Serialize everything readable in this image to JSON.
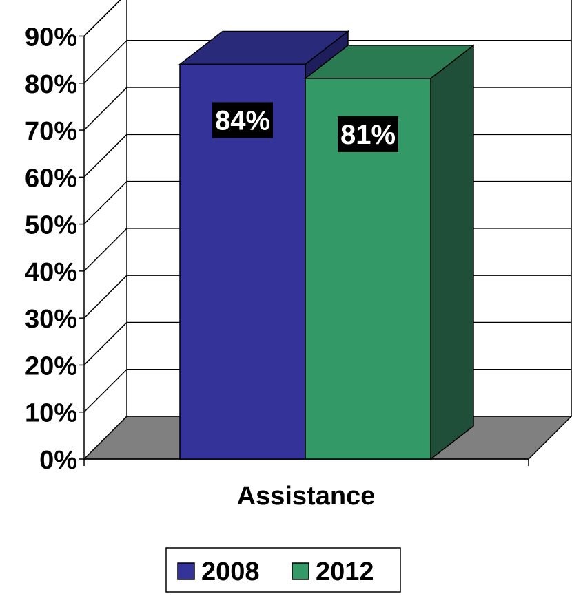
{
  "chart_data": {
    "type": "bar",
    "categories": [
      "Assistance"
    ],
    "series": [
      {
        "name": "2008",
        "values": [
          84
        ],
        "color": "#333399",
        "top_color": "#2a2a7a",
        "side_color": "#1e1e5c",
        "label_bg": "#000000"
      },
      {
        "name": "2012",
        "values": [
          81
        ],
        "color": "#339966",
        "top_color": "#2a7a52",
        "side_color": "#1f4f38",
        "label_bg": "#000000"
      }
    ],
    "data_labels": [
      "84%",
      "81%"
    ],
    "y_ticks": [
      "0%",
      "10%",
      "20%",
      "30%",
      "40%",
      "50%",
      "60%",
      "70%",
      "80%",
      "90%"
    ],
    "ylim": [
      0,
      90
    ],
    "grid": true,
    "floor_color": "#808080",
    "legend": {
      "position": "bottom",
      "entries": [
        "2008",
        "2012"
      ]
    },
    "title": "",
    "xlabel": "",
    "ylabel": ""
  }
}
